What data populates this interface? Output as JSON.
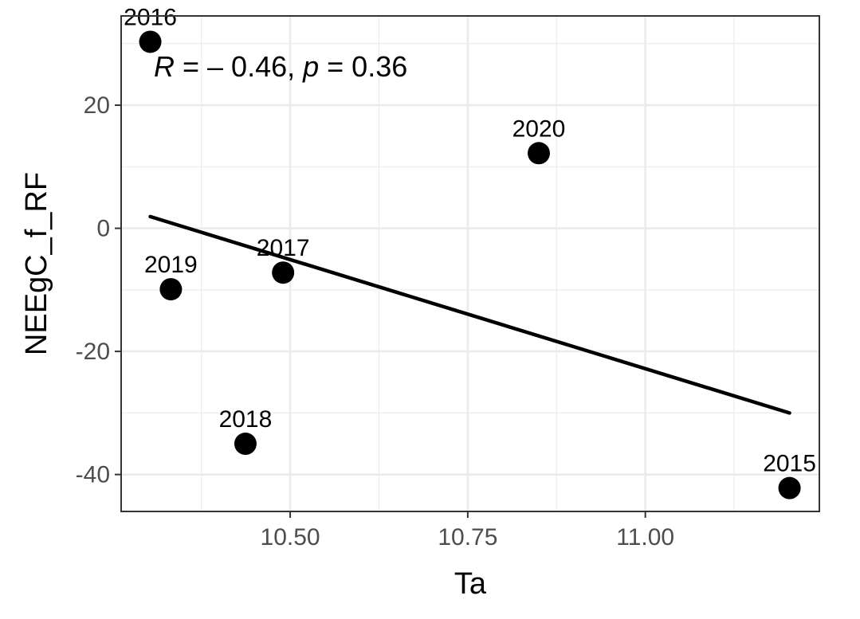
{
  "chart_data": {
    "type": "scatter",
    "title": "",
    "xlabel": "Ta",
    "ylabel": "NEEgC_f_RF",
    "xlim": [
      10.262,
      11.245
    ],
    "ylim": [
      -46,
      34.5
    ],
    "x_ticks": [
      10.5,
      10.75,
      11.0
    ],
    "x_tick_labels": [
      "10.50",
      "10.75",
      "11.00"
    ],
    "y_ticks": [
      -40,
      -20,
      0,
      20
    ],
    "y_tick_labels": [
      "-40",
      "-20",
      "0",
      "20"
    ],
    "grid": true,
    "points": [
      {
        "label": "2016",
        "x": 10.303,
        "y": 30.3
      },
      {
        "label": "2019",
        "x": 10.332,
        "y": -9.9
      },
      {
        "label": "2017",
        "x": 10.49,
        "y": -7.2
      },
      {
        "label": "2018",
        "x": 10.437,
        "y": -35.0
      },
      {
        "label": "2020",
        "x": 10.85,
        "y": 12.2
      },
      {
        "label": "2015",
        "x": 11.203,
        "y": -42.2
      }
    ],
    "fit_line": {
      "x": [
        10.303,
        11.203
      ],
      "y": [
        1.9,
        -30.0
      ]
    },
    "annotation": {
      "r_symbol": "R",
      "r_text": " = – 0.46, ",
      "p_symbol": "p",
      "p_text": " = 0.36"
    },
    "colors": {
      "points": "#000000",
      "line": "#000000",
      "grid": "#ebebeb",
      "panel_border": "#333333"
    }
  }
}
